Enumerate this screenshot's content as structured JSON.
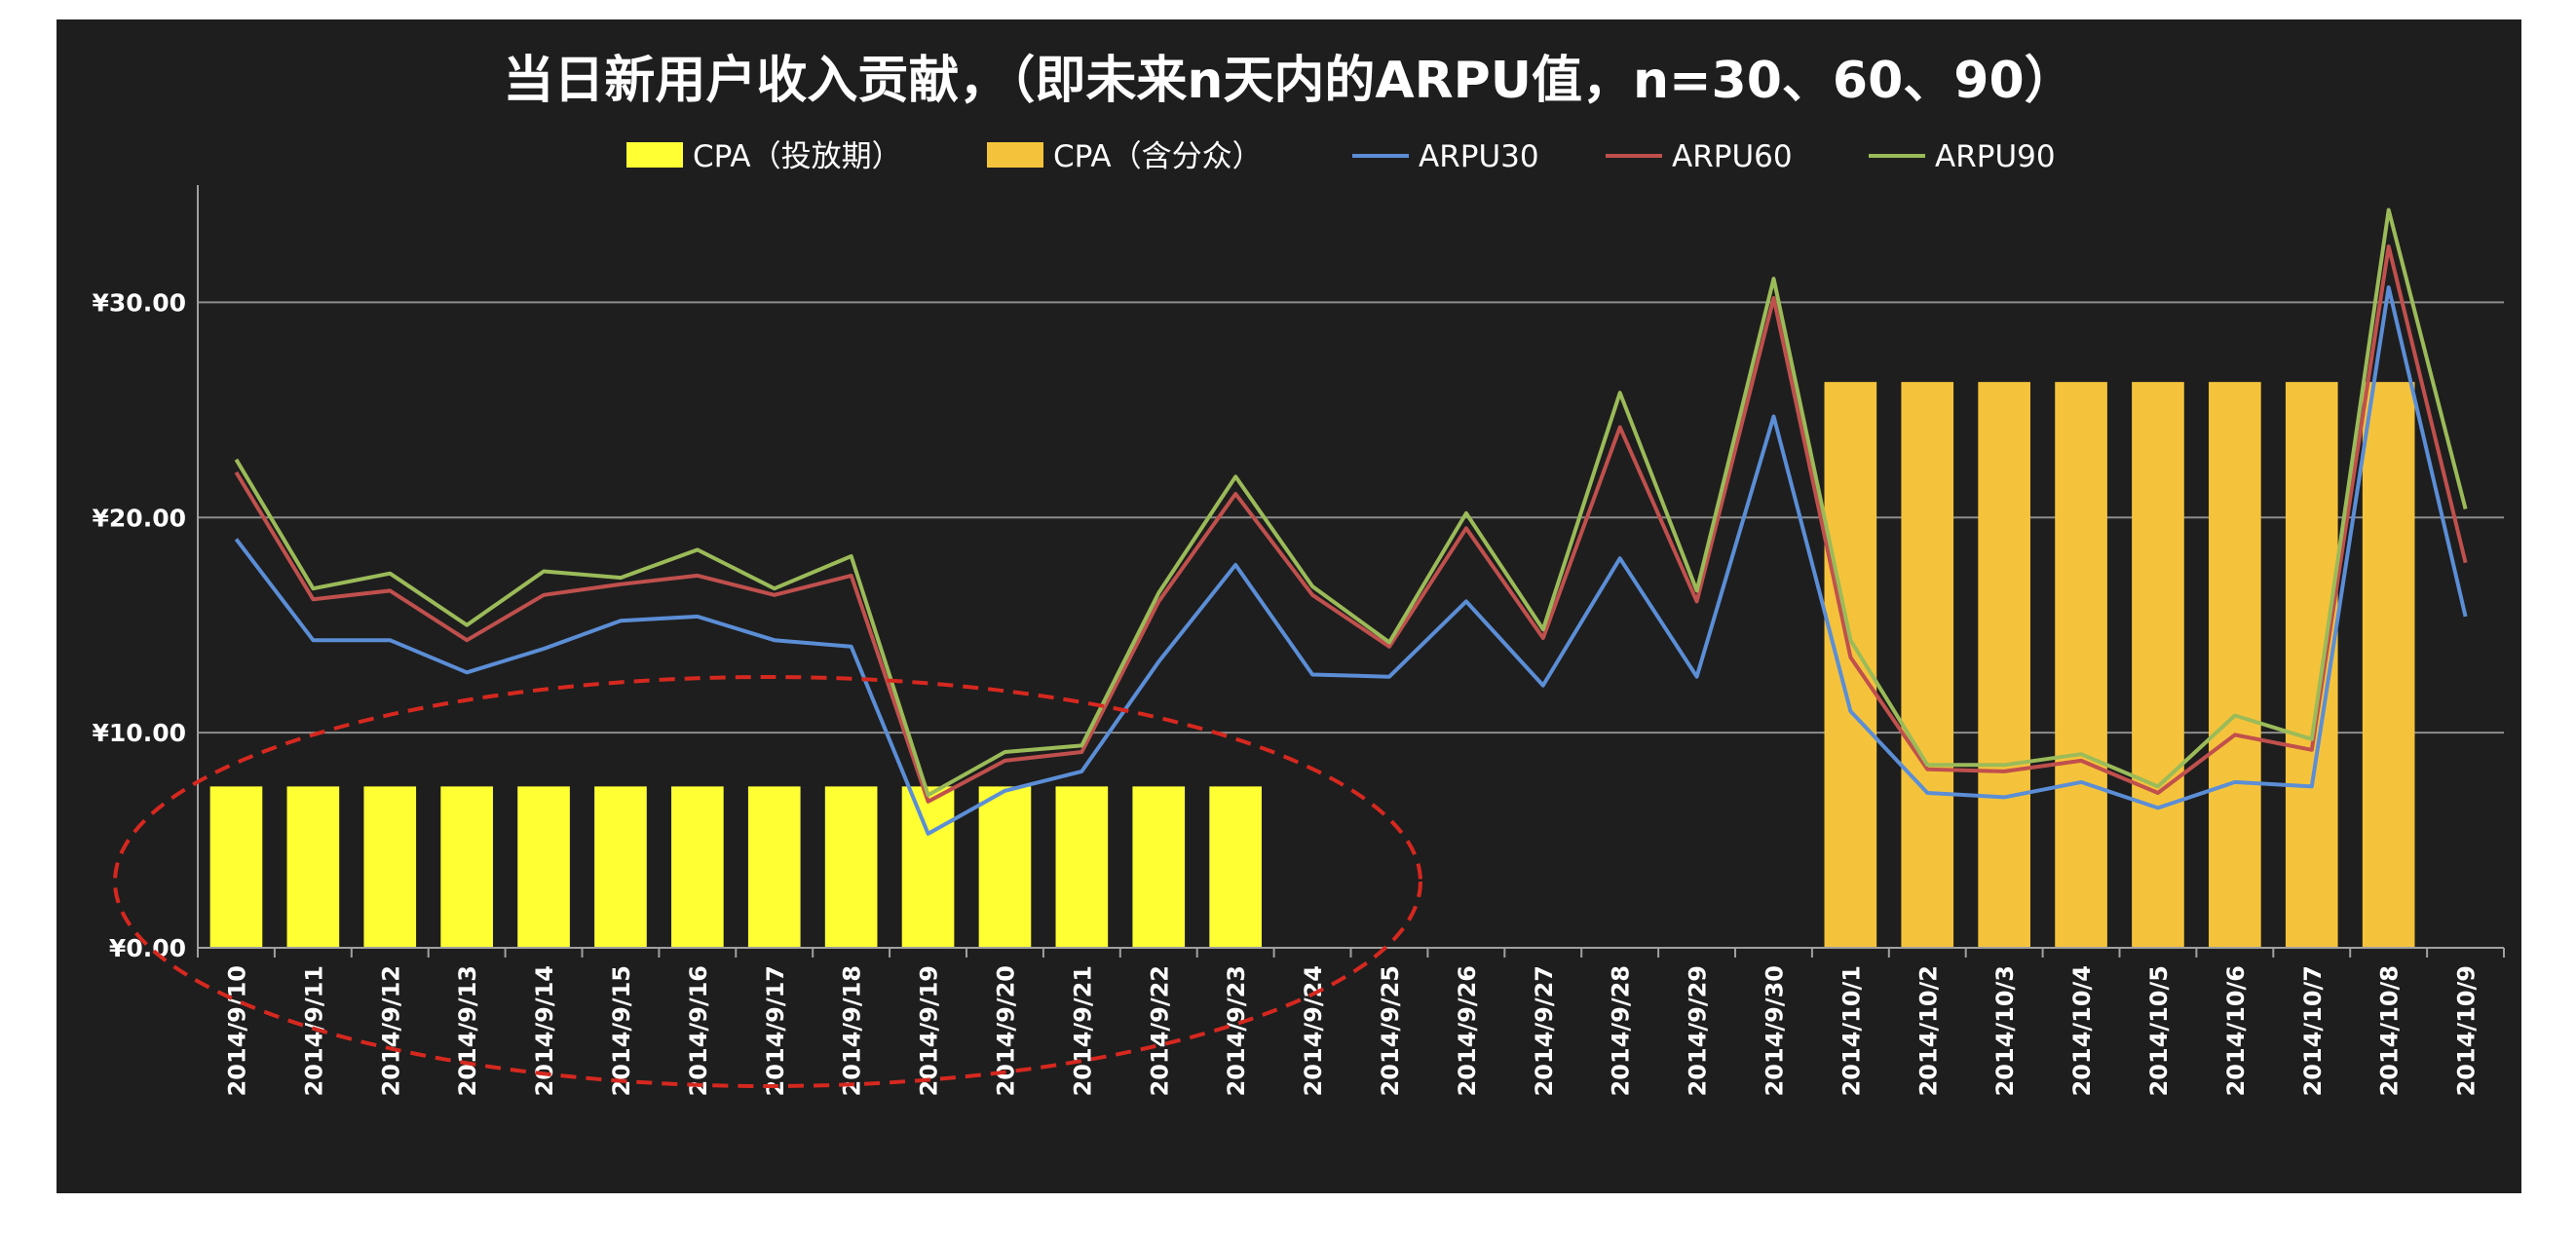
{
  "chart_data": {
    "type": "bar",
    "title": "当日新用户收入贡献，（即未来n天内的ARPU值，n=30、60、90）",
    "categories": [
      "2014/9/10",
      "2014/9/11",
      "2014/9/12",
      "2014/9/13",
      "2014/9/14",
      "2014/9/15",
      "2014/9/16",
      "2014/9/17",
      "2014/9/18",
      "2014/9/19",
      "2014/9/20",
      "2014/9/21",
      "2014/9/22",
      "2014/9/23",
      "2014/9/24",
      "2014/9/25",
      "2014/9/26",
      "2014/9/27",
      "2014/9/28",
      "2014/9/29",
      "2014/9/30",
      "2014/10/1",
      "2014/10/2",
      "2014/10/3",
      "2014/10/4",
      "2014/10/5",
      "2014/10/6",
      "2014/10/7",
      "2014/10/8",
      "2014/10/9"
    ],
    "y_ticks": [
      "¥0.00",
      "¥10.00",
      "¥20.00",
      "¥30.00"
    ],
    "ylim": [
      0,
      35
    ],
    "grid": true,
    "legend_position": "top",
    "annotation": "red dashed ellipse around 2014/9/10 – 2014/9/23",
    "series": [
      {
        "name": "CPA（投放期）",
        "kind": "bar",
        "color": "#ffff33",
        "values": [
          7.5,
          7.5,
          7.5,
          7.5,
          7.5,
          7.5,
          7.5,
          7.5,
          7.5,
          7.5,
          7.5,
          7.5,
          7.5,
          7.5,
          null,
          null,
          null,
          null,
          null,
          null,
          null,
          null,
          null,
          null,
          null,
          null,
          null,
          null,
          null,
          null
        ]
      },
      {
        "name": "CPA（含分众）",
        "kind": "bar",
        "color": "#f5c33b",
        "values": [
          null,
          null,
          null,
          null,
          null,
          null,
          null,
          null,
          null,
          null,
          null,
          null,
          null,
          null,
          null,
          null,
          null,
          null,
          null,
          null,
          null,
          26.3,
          26.3,
          26.3,
          26.3,
          26.3,
          26.3,
          26.3,
          26.3,
          null
        ]
      },
      {
        "name": "ARPU30",
        "kind": "line",
        "color": "#5b8ed6",
        "values": [
          19.0,
          14.3,
          14.3,
          12.8,
          13.9,
          15.2,
          15.4,
          14.3,
          14.0,
          5.3,
          7.3,
          8.2,
          13.3,
          17.8,
          12.7,
          12.6,
          16.1,
          12.2,
          18.1,
          12.6,
          24.7,
          11.0,
          7.2,
          7.0,
          7.7,
          6.5,
          7.7,
          7.5,
          30.7,
          15.4
        ]
      },
      {
        "name": "ARPU60",
        "kind": "line",
        "color": "#c0504d",
        "values": [
          22.1,
          16.2,
          16.6,
          14.3,
          16.4,
          16.9,
          17.3,
          16.4,
          17.3,
          6.8,
          8.7,
          9.1,
          16.1,
          21.1,
          16.4,
          14.0,
          19.5,
          14.4,
          24.2,
          16.1,
          30.2,
          13.5,
          8.3,
          8.2,
          8.7,
          7.2,
          9.9,
          9.2,
          32.6,
          17.9
        ]
      },
      {
        "name": "ARPU90",
        "kind": "line",
        "color": "#9bbb59",
        "values": [
          22.7,
          16.7,
          17.4,
          15.0,
          17.5,
          17.2,
          18.5,
          16.7,
          18.2,
          7.1,
          9.1,
          9.4,
          16.5,
          21.9,
          16.8,
          14.2,
          20.2,
          14.8,
          25.8,
          16.6,
          31.1,
          14.3,
          8.5,
          8.5,
          9.0,
          7.5,
          10.8,
          9.7,
          34.3,
          20.4
        ]
      }
    ]
  },
  "colors": {
    "background": "#1e1e1e",
    "frame": "#ffffff",
    "grid": "#8c8c8c",
    "text": "#ffffff",
    "annotation": "#d6281f"
  }
}
